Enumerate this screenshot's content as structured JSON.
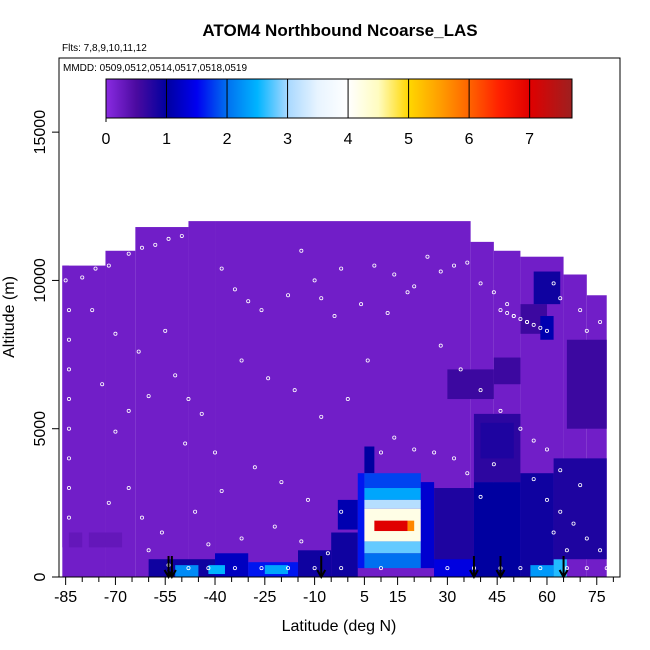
{
  "chart_data": {
    "type": "heatmap",
    "title": "ATOM4 Northbound Ncoarse_LAS",
    "flights_note": "Flts: 7,8,9,10,11,12",
    "dates_note": "MMDD: 0509,0512,0514,0517,0518,0519",
    "xlabel": "Latitude (deg N)",
    "ylabel": "Altitude (m)",
    "xlim": [
      -87,
      82
    ],
    "ylim": [
      0,
      17500
    ],
    "x_ticks": [
      -85,
      -70,
      -55,
      -40,
      -25,
      -10,
      5,
      15,
      30,
      45,
      60,
      75
    ],
    "x_minor_ticks": [
      -80,
      -75,
      -65,
      -60,
      -50,
      -45,
      -35,
      -30,
      -20,
      -15,
      -5,
      0,
      10,
      20,
      25,
      35,
      40,
      50,
      55,
      65,
      70,
      80
    ],
    "y_ticks": [
      0,
      5000,
      10000,
      15000
    ],
    "colorbar": {
      "ticks": [
        0,
        1,
        2,
        3,
        4,
        5,
        6,
        7
      ],
      "range": [
        0,
        7.7
      ],
      "stops": [
        {
          "v": 0.0,
          "c": "#8a2be2"
        },
        {
          "v": 0.5,
          "c": "#4b0aa0"
        },
        {
          "v": 1.0,
          "c": "#0000a0"
        },
        {
          "v": 1.5,
          "c": "#0000f0"
        },
        {
          "v": 2.0,
          "c": "#0070f0"
        },
        {
          "v": 2.5,
          "c": "#00b4ff"
        },
        {
          "v": 3.0,
          "c": "#a8d8ff"
        },
        {
          "v": 3.5,
          "c": "#e8f4ff"
        },
        {
          "v": 4.0,
          "c": "#ffffff"
        },
        {
          "v": 4.5,
          "c": "#fffcc0"
        },
        {
          "v": 5.0,
          "c": "#ffd700"
        },
        {
          "v": 5.5,
          "c": "#ffa000"
        },
        {
          "v": 6.0,
          "c": "#ff6400"
        },
        {
          "v": 6.5,
          "c": "#ff2000"
        },
        {
          "v": 7.0,
          "c": "#e00000"
        },
        {
          "v": 7.7,
          "c": "#9e2020"
        }
      ]
    },
    "background_value": 0.2,
    "envelope": [
      {
        "lat0": -86,
        "lat1": -73,
        "alt_top": 10500
      },
      {
        "lat0": -73,
        "lat1": -64,
        "alt_top": 11000
      },
      {
        "lat0": -64,
        "lat1": -48,
        "alt_top": 11800
      },
      {
        "lat0": -48,
        "lat1": -40,
        "alt_top": 12000
      },
      {
        "lat0": -40,
        "lat1": 37,
        "alt_top": 12000
      },
      {
        "lat0": 37,
        "lat1": 44,
        "alt_top": 11300
      },
      {
        "lat0": 44,
        "lat1": 52,
        "alt_top": 11000
      },
      {
        "lat0": 52,
        "lat1": 65,
        "alt_top": 10800
      },
      {
        "lat0": 65,
        "lat1": 72,
        "alt_top": 10200
      },
      {
        "lat0": 72,
        "lat1": 78,
        "alt_top": 9500
      }
    ],
    "cells": [
      {
        "lat0": -86,
        "lat1": -84,
        "alt0": 1000,
        "alt1": 10500,
        "value": 0.2
      },
      {
        "lat0": -84,
        "lat1": -80,
        "alt0": 1000,
        "alt1": 1500,
        "value": 0.3
      },
      {
        "lat0": -78,
        "lat1": -68,
        "alt0": 1000,
        "alt1": 1500,
        "value": 0.3
      },
      {
        "lat0": -60,
        "lat1": -40,
        "alt0": 0,
        "alt1": 600,
        "value": 0.9
      },
      {
        "lat0": -52,
        "lat1": -45,
        "alt0": 0,
        "alt1": 400,
        "value": 2.2
      },
      {
        "lat0": -40,
        "lat1": -30,
        "alt0": 0,
        "alt1": 800,
        "value": 1.2
      },
      {
        "lat0": -42,
        "lat1": -37,
        "alt0": 100,
        "alt1": 400,
        "value": 2.5
      },
      {
        "lat0": -30,
        "lat1": -15,
        "alt0": 0,
        "alt1": 500,
        "value": 1.6
      },
      {
        "lat0": -25,
        "lat1": -18,
        "alt0": 100,
        "alt1": 400,
        "value": 2.4
      },
      {
        "lat0": -15,
        "lat1": -5,
        "alt0": 0,
        "alt1": 900,
        "value": 0.9
      },
      {
        "lat0": -5,
        "lat1": 3,
        "alt0": 0,
        "alt1": 1500,
        "value": 0.9
      },
      {
        "lat0": -3,
        "lat1": 3,
        "alt0": 1600,
        "alt1": 2600,
        "value": 1.1
      },
      {
        "lat0": 3,
        "lat1": 5,
        "alt0": 300,
        "alt1": 3500,
        "value": 1.6
      },
      {
        "lat0": 5,
        "lat1": 8,
        "alt0": 3500,
        "alt1": 4400,
        "value": 1.0
      },
      {
        "lat0": 5,
        "lat1": 22,
        "alt0": 3000,
        "alt1": 3500,
        "value": 1.8
      },
      {
        "lat0": 5,
        "lat1": 22,
        "alt0": 2600,
        "alt1": 3000,
        "value": 2.4
      },
      {
        "lat0": 5,
        "lat1": 22,
        "alt0": 2300,
        "alt1": 2600,
        "value": 3.1
      },
      {
        "lat0": 5,
        "lat1": 22,
        "alt0": 1200,
        "alt1": 2300,
        "value": 4.2
      },
      {
        "lat0": 8,
        "lat1": 18,
        "alt0": 1550,
        "alt1": 1900,
        "value": 7.0
      },
      {
        "lat0": 18,
        "lat1": 20,
        "alt0": 1550,
        "alt1": 1900,
        "value": 5.7
      },
      {
        "lat0": 5,
        "lat1": 22,
        "alt0": 800,
        "alt1": 1200,
        "value": 2.8
      },
      {
        "lat0": 5,
        "lat1": 22,
        "alt0": 300,
        "alt1": 800,
        "value": 2.0
      },
      {
        "lat0": 22,
        "lat1": 26,
        "alt0": 300,
        "alt1": 3200,
        "value": 1.3
      },
      {
        "lat0": 26,
        "lat1": 38,
        "alt0": 0,
        "alt1": 3000,
        "value": 0.8
      },
      {
        "lat0": 26,
        "lat1": 38,
        "alt0": 0,
        "alt1": 600,
        "value": 1.4
      },
      {
        "lat0": 38,
        "lat1": 52,
        "alt0": 0,
        "alt1": 3200,
        "value": 1.0
      },
      {
        "lat0": 38,
        "lat1": 52,
        "alt0": 3200,
        "alt1": 5500,
        "value": 0.7
      },
      {
        "lat0": 52,
        "lat1": 62,
        "alt0": 0,
        "alt1": 3500,
        "value": 0.9
      },
      {
        "lat0": 55,
        "lat1": 62,
        "alt0": 0,
        "alt1": 400,
        "value": 2.3
      },
      {
        "lat0": 62,
        "lat1": 66,
        "alt0": 0,
        "alt1": 600,
        "value": 2.6
      },
      {
        "lat0": 62,
        "lat1": 78,
        "alt0": 600,
        "alt1": 4000,
        "value": 0.8
      },
      {
        "lat0": 44,
        "lat1": 52,
        "alt0": 6500,
        "alt1": 7400,
        "value": 0.6
      },
      {
        "lat0": 52,
        "lat1": 60,
        "alt0": 8200,
        "alt1": 9200,
        "value": 0.6
      },
      {
        "lat0": 56,
        "lat1": 64,
        "alt0": 9200,
        "alt1": 10300,
        "value": 0.9
      },
      {
        "lat0": 58,
        "lat1": 62,
        "alt0": 8000,
        "alt1": 8800,
        "value": 1.1
      },
      {
        "lat0": 30,
        "lat1": 44,
        "alt0": 6000,
        "alt1": 7000,
        "value": 0.6
      },
      {
        "lat0": 66,
        "lat1": 78,
        "alt0": 5000,
        "alt1": 8000,
        "value": 0.6
      },
      {
        "lat0": 40,
        "lat1": 50,
        "alt0": 4000,
        "alt1": 5200,
        "value": 0.8
      }
    ],
    "markers_lat": [
      -54,
      -53,
      -8,
      38,
      46,
      65
    ],
    "sample_points": [
      [
        -85,
        10000
      ],
      [
        -84,
        9000
      ],
      [
        -84,
        8000
      ],
      [
        -84,
        7000
      ],
      [
        -84,
        6000
      ],
      [
        -84,
        5000
      ],
      [
        -84,
        4000
      ],
      [
        -84,
        3000
      ],
      [
        -84,
        2000
      ],
      [
        -80,
        10100
      ],
      [
        -76,
        10400
      ],
      [
        -72,
        10500
      ],
      [
        -66,
        10900
      ],
      [
        -62,
        11100
      ],
      [
        -58,
        11200
      ],
      [
        -54,
        11400
      ],
      [
        -50,
        11500
      ],
      [
        -77,
        9000
      ],
      [
        -70,
        8200
      ],
      [
        -63,
        7600
      ],
      [
        -55,
        8300
      ],
      [
        -52,
        6800
      ],
      [
        -48,
        6000
      ],
      [
        -44,
        5500
      ],
      [
        -49,
        4500
      ],
      [
        -40,
        4200
      ],
      [
        -38,
        10400
      ],
      [
        -34,
        9700
      ],
      [
        -30,
        9300
      ],
      [
        -26,
        9000
      ],
      [
        -18,
        9500
      ],
      [
        -14,
        11000
      ],
      [
        -8,
        9400
      ],
      [
        -4,
        8800
      ],
      [
        -32,
        7300
      ],
      [
        -24,
        6700
      ],
      [
        -16,
        6300
      ],
      [
        -8,
        5400
      ],
      [
        0,
        6000
      ],
      [
        6,
        7300
      ],
      [
        12,
        8900
      ],
      [
        18,
        9600
      ],
      [
        -28,
        3700
      ],
      [
        -20,
        3200
      ],
      [
        -12,
        2600
      ],
      [
        -2,
        2200
      ],
      [
        -38,
        2900
      ],
      [
        -46,
        2200
      ],
      [
        -56,
        1500
      ],
      [
        -60,
        900
      ],
      [
        -42,
        1100
      ],
      [
        -32,
        1300
      ],
      [
        -22,
        1700
      ],
      [
        -14,
        1200
      ],
      [
        -6,
        800
      ],
      [
        24,
        10800
      ],
      [
        28,
        10300
      ],
      [
        32,
        10500
      ],
      [
        36,
        10600
      ],
      [
        40,
        9900
      ],
      [
        44,
        9600
      ],
      [
        48,
        9200
      ],
      [
        50,
        8800
      ],
      [
        54,
        8600
      ],
      [
        46,
        9000
      ],
      [
        48,
        8900
      ],
      [
        50,
        8800
      ],
      [
        52,
        8700
      ],
      [
        54,
        8600
      ],
      [
        56,
        8500
      ],
      [
        58,
        8400
      ],
      [
        60,
        8300
      ],
      [
        62,
        9900
      ],
      [
        66,
        10700
      ],
      [
        70,
        11000
      ],
      [
        74,
        11100
      ],
      [
        64,
        9400
      ],
      [
        70,
        9000
      ],
      [
        76,
        8600
      ],
      [
        72,
        8300
      ],
      [
        28,
        7800
      ],
      [
        34,
        7000
      ],
      [
        40,
        6300
      ],
      [
        46,
        5600
      ],
      [
        52,
        5000
      ],
      [
        56,
        4600
      ],
      [
        60,
        4300
      ],
      [
        64,
        3600
      ],
      [
        70,
        3100
      ],
      [
        56,
        3300
      ],
      [
        60,
        2600
      ],
      [
        64,
        2200
      ],
      [
        68,
        1800
      ],
      [
        72,
        1300
      ],
      [
        76,
        900
      ],
      [
        62,
        1500
      ],
      [
        66,
        900
      ],
      [
        -54,
        400
      ],
      [
        -48,
        300
      ],
      [
        -42,
        300
      ],
      [
        -34,
        300
      ],
      [
        -26,
        300
      ],
      [
        -18,
        300
      ],
      [
        -10,
        300
      ],
      [
        -2,
        300
      ],
      [
        10,
        300
      ],
      [
        30,
        300
      ],
      [
        38,
        300
      ],
      [
        46,
        300
      ],
      [
        52,
        300
      ],
      [
        58,
        300
      ],
      [
        66,
        300
      ],
      [
        72,
        300
      ],
      [
        78,
        300
      ],
      [
        14,
        4700
      ],
      [
        10,
        4200
      ],
      [
        20,
        4300
      ],
      [
        26,
        4200
      ],
      [
        32,
        4000
      ],
      [
        36,
        3500
      ],
      [
        44,
        3800
      ],
      [
        40,
        2700
      ],
      [
        -70,
        4900
      ],
      [
        -66,
        5600
      ],
      [
        -60,
        6100
      ],
      [
        -74,
        6500
      ],
      [
        -66,
        3000
      ],
      [
        -72,
        2500
      ],
      [
        -62,
        2000
      ],
      [
        8,
        10500
      ],
      [
        14,
        10200
      ],
      [
        20,
        9800
      ],
      [
        4,
        9200
      ],
      [
        -2,
        10400
      ],
      [
        -10,
        10000
      ]
    ]
  }
}
